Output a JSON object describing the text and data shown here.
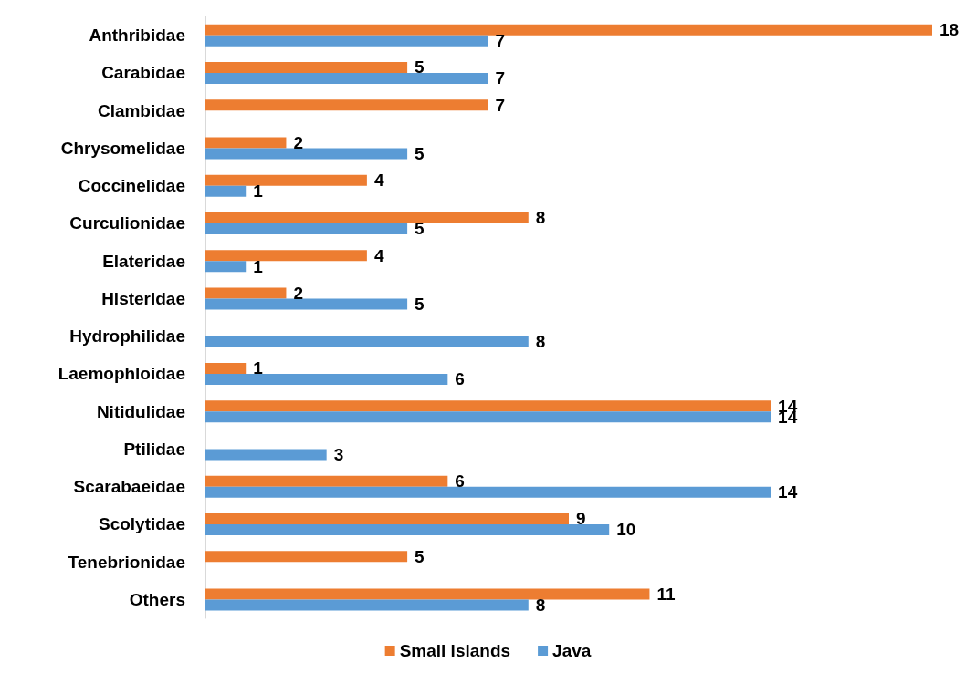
{
  "chart_data": {
    "type": "bar",
    "orientation": "horizontal",
    "categories": [
      "Anthribidae",
      "Carabidae",
      "Clambidae",
      "Chrysomelidae",
      "Coccinelidae",
      "Curculionidae",
      "Elateridae",
      "Histeridae",
      "Hydrophilidae",
      "Laemophloidae",
      "Nitidulidae",
      "Ptilidae",
      "Scarabaeidae",
      "Scolytidae",
      "Tenebrionidae",
      "Others"
    ],
    "series": [
      {
        "name": "Small islands",
        "color": "#ed7d31",
        "values": [
          18,
          5,
          7,
          2,
          4,
          8,
          4,
          2,
          null,
          1,
          14,
          null,
          6,
          9,
          5,
          11
        ]
      },
      {
        "name": "Java",
        "color": "#5b9bd5",
        "values": [
          7,
          7,
          null,
          5,
          1,
          5,
          1,
          5,
          8,
          6,
          14,
          3,
          14,
          10,
          null,
          8
        ]
      }
    ],
    "data_labels": true,
    "legend": "bottom"
  }
}
